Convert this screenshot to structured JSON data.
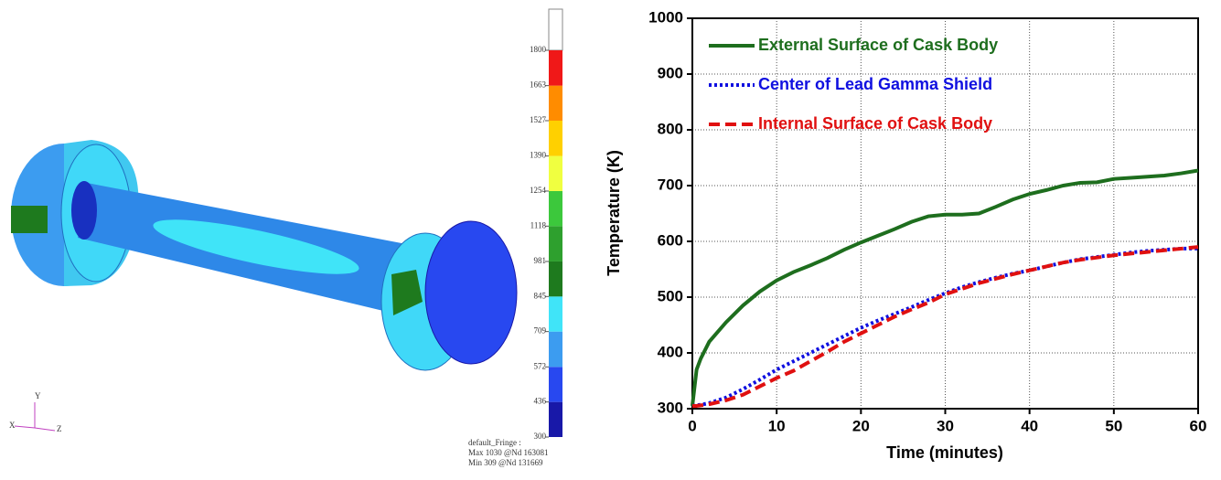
{
  "model_view": {
    "colorbar": {
      "ticks": [
        300,
        436,
        572,
        709,
        845,
        981,
        1118,
        1254,
        1390,
        1527,
        1663,
        1800
      ],
      "colors": [
        "#1818a8",
        "#2848f0",
        "#3c9cf0",
        "#40e4f8",
        "#1e7a1e",
        "#2ea02e",
        "#3cc83c",
        "#f0ff40",
        "#ffd000",
        "#ff8c00",
        "#f01818"
      ]
    },
    "triad": [
      "X",
      "Y",
      "Z"
    ],
    "notes": [
      "default_Fringe :",
      "Max 1030 @Nd 163081",
      "Min 309 @Nd 131669"
    ]
  },
  "chart_data": {
    "type": "line",
    "x_label": "Time (minutes)",
    "y_label": "Temperature (K)",
    "x": [
      0,
      0.5,
      1,
      2,
      4,
      6,
      8,
      10,
      12,
      14,
      16,
      18,
      20,
      22,
      24,
      26,
      28,
      30,
      32,
      34,
      36,
      38,
      40,
      42,
      44,
      46,
      48,
      50,
      52,
      54,
      56,
      58,
      60
    ],
    "series": [
      {
        "name": "External Surface of Cask Body",
        "color": "#1e6e1e",
        "dash": "solid",
        "values": [
          305,
          370,
          390,
          420,
          455,
          485,
          510,
          530,
          545,
          557,
          570,
          585,
          598,
          610,
          622,
          635,
          645,
          648,
          648,
          650,
          662,
          675,
          685,
          692,
          700,
          705,
          706,
          712,
          714,
          716,
          718,
          722,
          727
        ]
      },
      {
        "name": "Center of Lead Gamma Shield",
        "color": "#1010e0",
        "dash": "dotted",
        "values": [
          305,
          306,
          307,
          310,
          320,
          335,
          352,
          370,
          385,
          400,
          415,
          430,
          445,
          458,
          470,
          482,
          495,
          507,
          518,
          527,
          535,
          542,
          548,
          555,
          562,
          568,
          572,
          576,
          580,
          583,
          585,
          587,
          587
        ]
      },
      {
        "name": "Internal Surface of Cask Body",
        "color": "#e01010",
        "dash": "dashed",
        "values": [
          305,
          305,
          306,
          308,
          315,
          325,
          340,
          355,
          368,
          385,
          402,
          420,
          435,
          450,
          465,
          478,
          490,
          505,
          515,
          525,
          533,
          541,
          548,
          555,
          562,
          567,
          571,
          575,
          578,
          581,
          584,
          587,
          590
        ]
      }
    ],
    "xlim": [
      0,
      60
    ],
    "xticks": [
      0,
      10,
      20,
      30,
      40,
      50,
      60
    ],
    "ylim": [
      300,
      1000
    ],
    "yticks": [
      300,
      400,
      500,
      600,
      700,
      800,
      900,
      1000
    ],
    "grid": true,
    "legend": "top-left"
  }
}
